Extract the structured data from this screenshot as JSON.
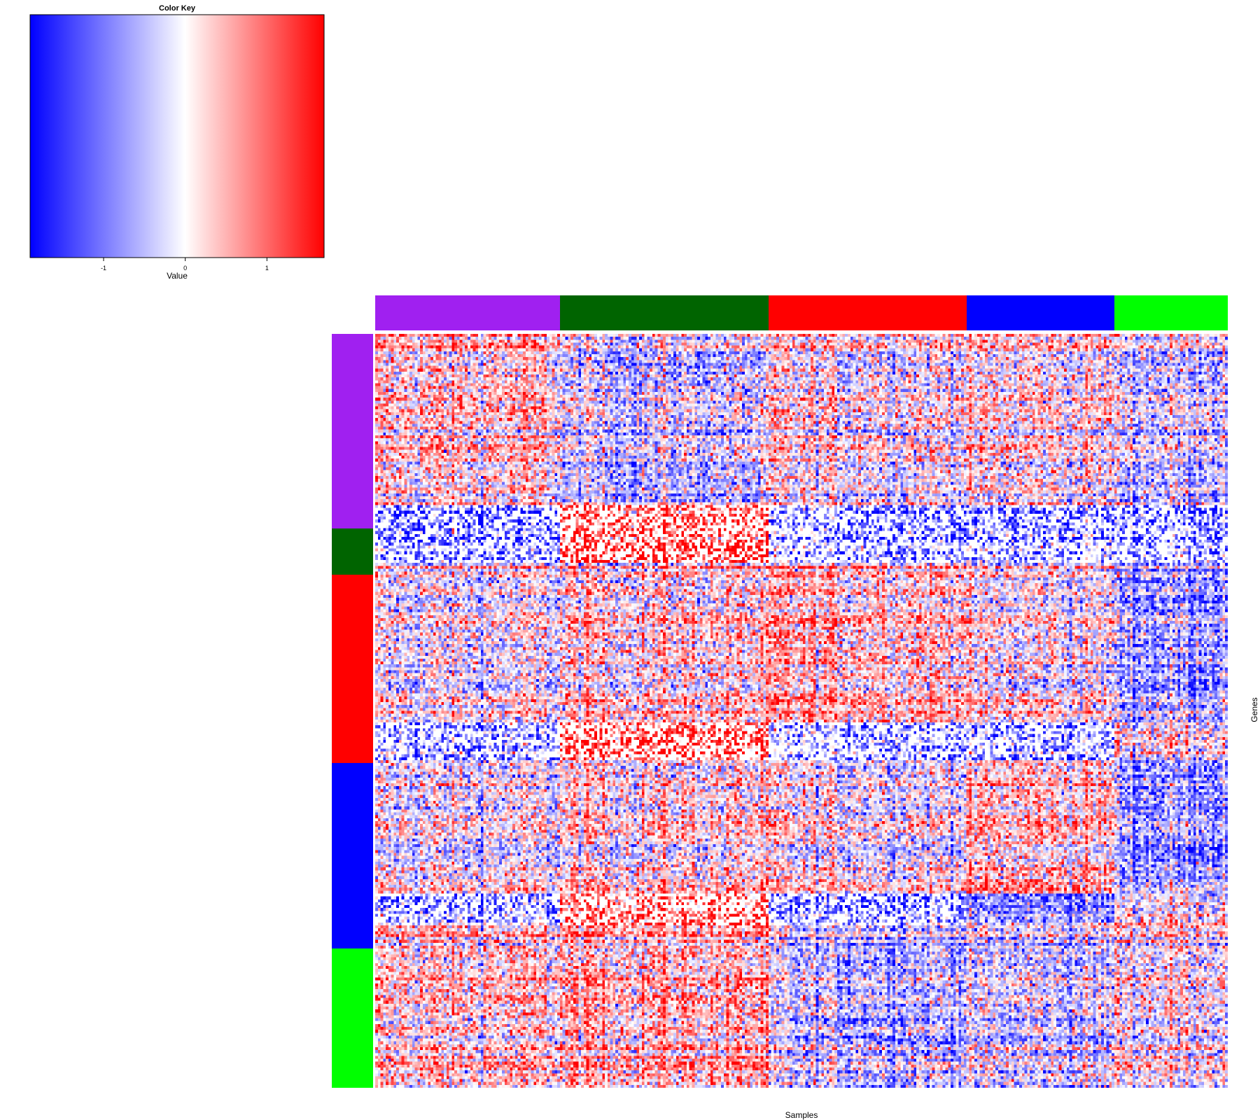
{
  "chart_data": {
    "type": "heatmap",
    "title": "",
    "xlabel": "Samples",
    "ylabel": "Genes",
    "color_key": {
      "title": "Color Key",
      "xlabel": "Value",
      "range": [
        -1.9,
        1.7
      ],
      "ticks": [
        -1,
        0,
        1
      ],
      "tick_labels": [
        "-1",
        "0",
        "1"
      ],
      "low_color": "#0000ff",
      "mid_color": "#ffffff",
      "high_color": "#ff0000"
    },
    "column_clusters": [
      {
        "color": "#a020f0",
        "columns": 70
      },
      {
        "color": "#006400",
        "columns": 79
      },
      {
        "color": "#ff0000",
        "columns": 75
      },
      {
        "color": "#0000ff",
        "columns": 56
      },
      {
        "color": "#00ff00",
        "columns": 43
      }
    ],
    "row_clusters": [
      {
        "color": "#a020f0",
        "rows": 67
      },
      {
        "color": "#006400",
        "rows": 16
      },
      {
        "color": "#ff0000",
        "rows": 65
      },
      {
        "color": "#0000ff",
        "rows": 64
      },
      {
        "color": "#00ff00",
        "rows": 48
      }
    ],
    "mean_values": [
      [
        0.25,
        -0.35,
        0.05,
        0.1,
        -0.25
      ],
      [
        -1.1,
        1.4,
        -0.9,
        -0.9,
        -0.9
      ],
      [
        -0.05,
        0.25,
        0.45,
        0.05,
        -0.55
      ],
      [
        -1.0,
        1.3,
        -0.9,
        -1.0,
        0.1
      ],
      [
        -0.05,
        0.2,
        0.05,
        0.4,
        -0.6
      ],
      [
        -0.9,
        1.2,
        -0.9,
        -0.8,
        0.2
      ],
      [
        0.25,
        0.45,
        -0.4,
        -0.3,
        0.1
      ]
    ],
    "mean_value_row_bands": [
      59,
      20,
      55,
      13,
      46,
      11,
      56
    ]
  }
}
